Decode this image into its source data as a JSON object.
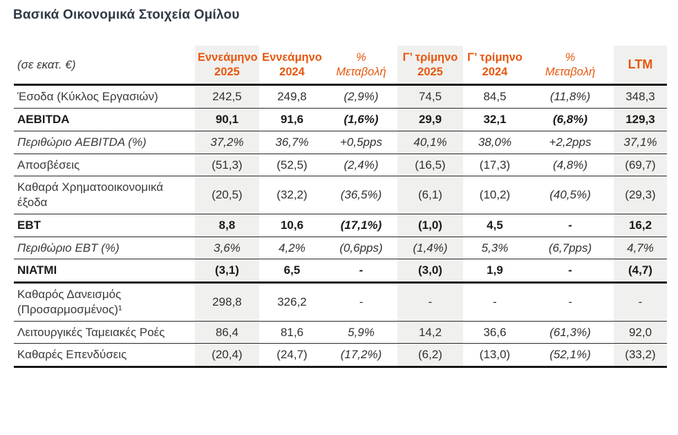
{
  "page": {
    "title": "Βασικά Οικονομικά Στοιχεία Ομίλου"
  },
  "colors": {
    "accent_orange": "#e7570f",
    "title_dark": "#2e3a45",
    "column_stripe_gray": "#f0f0ee",
    "border_black": "#161616"
  },
  "table": {
    "unit_label": "(σε εκατ. €)",
    "columns": [
      {
        "line1": "Εννεάμηνο",
        "line2": "2025"
      },
      {
        "line1": "Εννεάμηνο",
        "line2": "2024"
      },
      {
        "line1": "%",
        "line2": "Μεταβολή"
      },
      {
        "line1": "Γ’ τρίμηνο",
        "line2": "2025"
      },
      {
        "line1": "Γ’ τρίμηνο",
        "line2": "2024"
      },
      {
        "line1": "%",
        "line2": "Μεταβολή"
      },
      {
        "line1": "LTM",
        "line2": ""
      }
    ],
    "rows": [
      {
        "label": "Έσοδα (Κύκλος Εργασιών)",
        "style": "normal",
        "values": [
          "242,5",
          "249,8",
          "(2,9%)",
          "74,5",
          "84,5",
          "(11,8%)",
          "348,3"
        ]
      },
      {
        "label": "AEBITDA",
        "style": "bold",
        "values": [
          "90,1",
          "91,6",
          "(1,6%)",
          "29,9",
          "32,1",
          "(6,8%)",
          "129,3"
        ]
      },
      {
        "label": "Περιθώριο AEBITDA (%)",
        "style": "italic",
        "values": [
          "37,2%",
          "36,7%",
          "+0,5pps",
          "40,1%",
          "38,0%",
          "+2,2pps",
          "37,1%"
        ]
      },
      {
        "label": "Αποσβέσεις",
        "style": "normal",
        "values": [
          "(51,3)",
          "(52,5)",
          "(2,4%)",
          "(16,5)",
          "(17,3)",
          "(4,8%)",
          "(69,7)"
        ]
      },
      {
        "label": "Καθαρά Χρηματοοικονομικά έξοδα",
        "style": "normal",
        "values": [
          "(20,5)",
          "(32,2)",
          "(36,5%)",
          "(6,1)",
          "(10,2)",
          "(40,5%)",
          "(29,3)"
        ]
      },
      {
        "label": "EBT",
        "style": "bold",
        "values": [
          "8,8",
          "10,6",
          "(17,1%)",
          "(1,0)",
          "4,5",
          "-",
          "16,2"
        ]
      },
      {
        "label": "Περιθώριο EBT (%)",
        "style": "italic",
        "values": [
          "3,6%",
          "4,2%",
          "(0,6pps)",
          "(1,4%)",
          "5,3%",
          "(6,7pps)",
          "4,7%"
        ]
      },
      {
        "label": "NIATMI",
        "style": "bold",
        "values": [
          "(3,1)",
          "6,5",
          "-",
          "(3,0)",
          "1,9",
          "-",
          "(4,7)"
        ]
      },
      {
        "label": "Καθαρός Δανεισμός (Προσαρμοσμένος)¹",
        "style": "normal",
        "values": [
          "298,8",
          "326,2",
          "-",
          "-",
          "-",
          "-",
          "-"
        ]
      },
      {
        "label": "Λειτουργικές Ταμειακές Ροές",
        "style": "normal",
        "values": [
          "86,4",
          "81,6",
          "5,9%",
          "14,2",
          "36,6",
          "(61,3%)",
          "92,0"
        ]
      },
      {
        "label": "Καθαρές Επενδύσεις",
        "style": "normal",
        "values": [
          "(20,4)",
          "(24,7)",
          "(17,2%)",
          "(6,2)",
          "(13,0)",
          "(52,1%)",
          "(33,2)"
        ]
      }
    ]
  }
}
